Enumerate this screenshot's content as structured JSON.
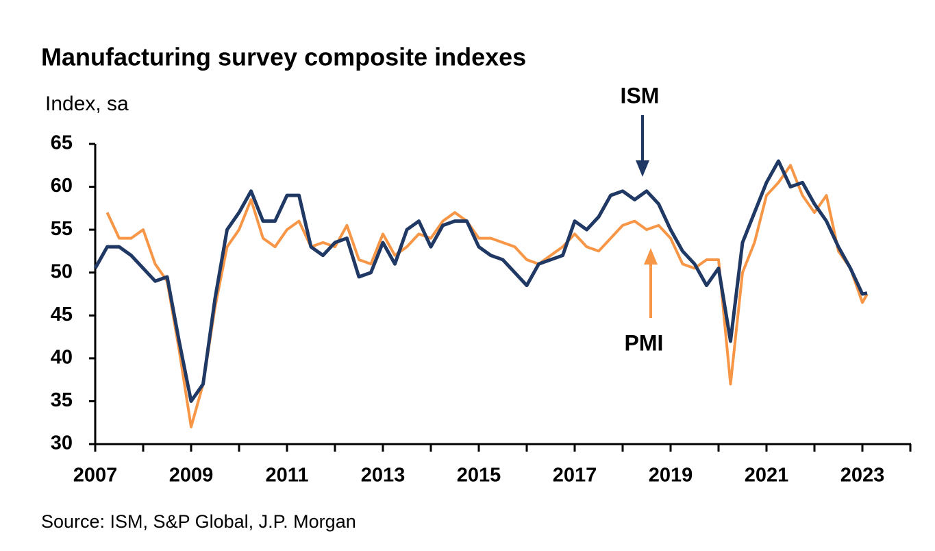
{
  "chart_data": {
    "type": "line",
    "title": "Manufacturing survey composite indexes",
    "y_label": "Index, sa",
    "source": "Source: ISM, S&P Global, J.P. Morgan",
    "annotations": [
      "ISM",
      "PMI"
    ],
    "x": [
      2007,
      2007.25,
      2007.5,
      2007.75,
      2008,
      2008.25,
      2008.5,
      2008.75,
      2009,
      2009.25,
      2009.5,
      2009.75,
      2010,
      2010.25,
      2010.5,
      2010.75,
      2011,
      2011.25,
      2011.5,
      2011.75,
      2012,
      2012.25,
      2012.5,
      2012.75,
      2013,
      2013.25,
      2013.5,
      2013.75,
      2014,
      2014.25,
      2014.5,
      2014.75,
      2015,
      2015.25,
      2015.5,
      2015.75,
      2016,
      2016.25,
      2016.5,
      2016.75,
      2017,
      2017.25,
      2017.5,
      2017.75,
      2018,
      2018.25,
      2018.5,
      2018.75,
      2019,
      2019.25,
      2019.5,
      2019.75,
      2020,
      2020.25,
      2020.5,
      2020.75,
      2021,
      2021.25,
      2021.5,
      2021.75,
      2022,
      2022.25,
      2022.5,
      2022.75,
      2023,
      2023.1
    ],
    "series": [
      {
        "name": "ISM",
        "color": "#1f3864",
        "values": [
          50.5,
          53,
          53,
          52,
          50.5,
          49,
          49.5,
          42,
          35,
          37,
          47,
          55,
          57,
          59.5,
          56,
          56,
          59,
          59,
          53,
          52,
          53.5,
          54,
          49.5,
          50,
          53.5,
          51,
          55,
          56,
          53,
          55.5,
          56,
          56,
          53,
          52,
          51.5,
          50,
          48.5,
          51,
          51.5,
          52,
          56,
          55,
          56.5,
          59,
          59.5,
          58.5,
          59.5,
          58,
          55,
          52.5,
          51,
          48.5,
          50.5,
          42,
          53.5,
          57,
          60.5,
          63,
          60,
          60.5,
          58,
          56,
          53,
          50.5,
          47.5,
          47.6
        ]
      },
      {
        "name": "PMI",
        "color": "#f79646",
        "values": [
          null,
          57,
          54,
          54,
          55,
          51,
          49,
          41,
          32,
          37,
          46,
          53,
          55,
          58.5,
          54,
          53,
          55,
          56,
          53,
          53.5,
          53,
          55.5,
          51.5,
          51,
          54.5,
          52,
          53,
          54.5,
          54,
          56,
          57,
          56,
          54,
          54,
          53.5,
          53,
          51.5,
          51,
          52,
          53,
          54.5,
          53,
          52.5,
          54,
          55.5,
          56,
          55,
          55.5,
          54,
          51,
          50.5,
          51.5,
          51.5,
          37,
          50,
          53.5,
          59,
          60.5,
          62.5,
          59,
          57,
          59,
          52.5,
          50.5,
          46.5,
          47.5
        ]
      }
    ],
    "xlim": [
      2007,
      2024
    ],
    "xticks": [
      2007,
      2009,
      2011,
      2013,
      2015,
      2017,
      2019,
      2021,
      2023
    ],
    "ylim": [
      30,
      65
    ],
    "yticks": [
      30,
      35,
      40,
      45,
      50,
      55,
      60,
      65
    ],
    "grid": false
  }
}
